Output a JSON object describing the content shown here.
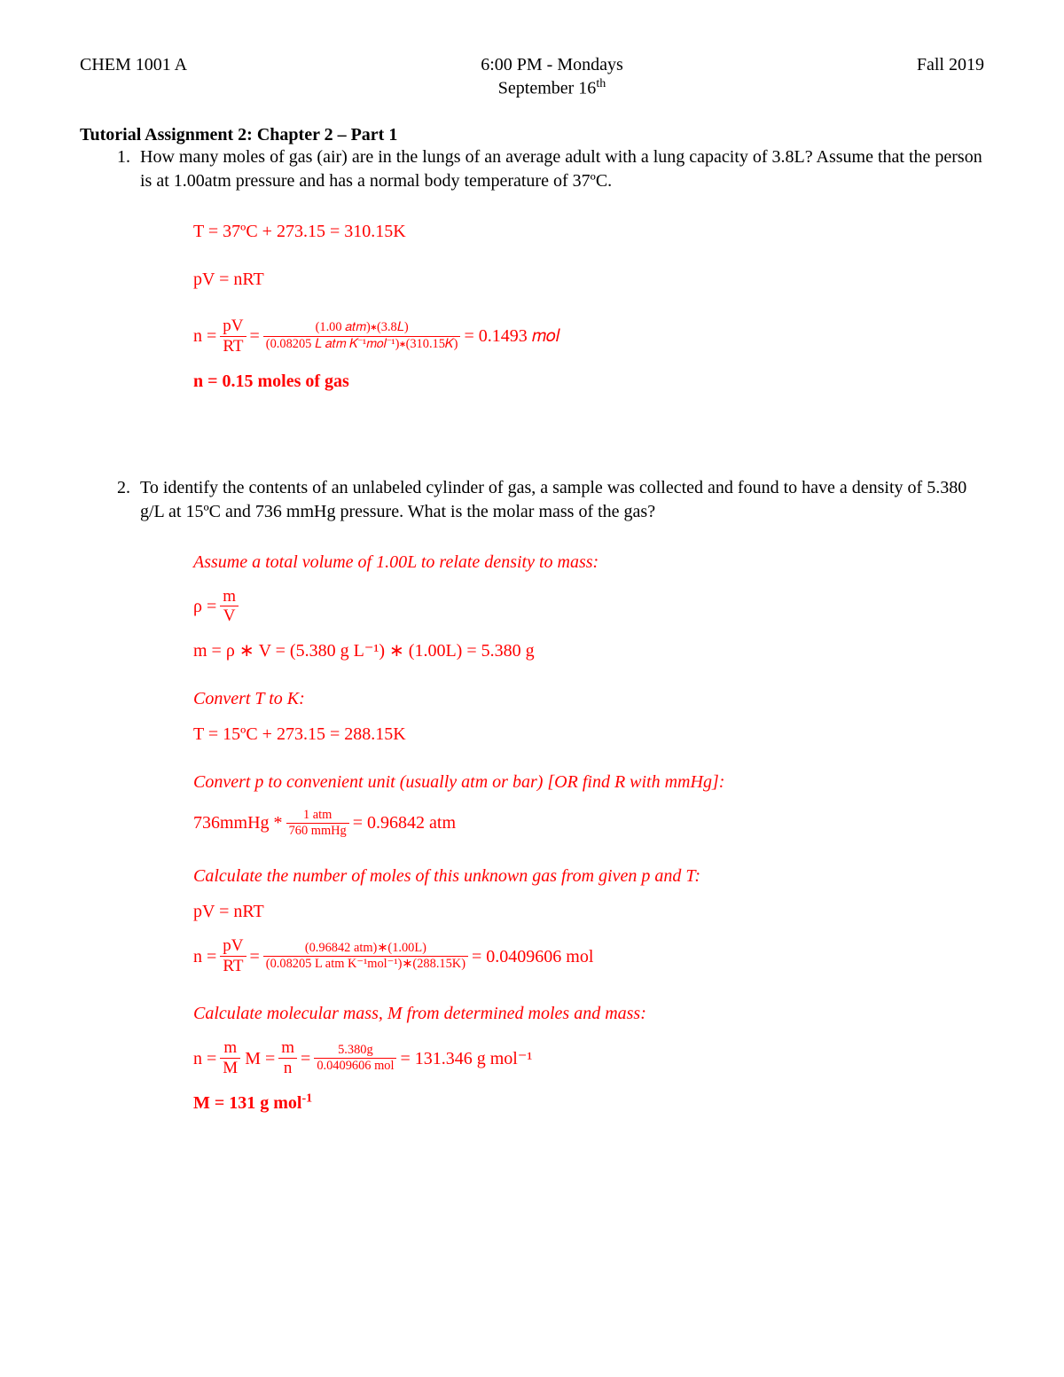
{
  "header": {
    "left": "CHEM 1001 A",
    "center_line1": "6:00 PM - Mondays",
    "center_line2_prefix": "September 16",
    "center_line2_sup": "th",
    "right": "Fall 2019"
  },
  "title": "Tutorial Assignment 2: Chapter 2 – Part 1",
  "colors": {
    "text": "#000000",
    "solution": "#ff0000",
    "background": "#ffffff"
  },
  "typography": {
    "family": "Times New Roman",
    "body_size_pt": 15,
    "title_weight": "bold"
  },
  "problem1": {
    "question": "How many moles of gas (air) are in the lungs of an average adult with a lung capacity of 3.8L? Assume that the person is at 1.00atm pressure and has a normal body temperature of 37ºC.",
    "sol_line1": "T = 37ºC + 273.15 = 310.15K",
    "sol_line2": "pV = nRT",
    "sol_eq_prefix": "n =",
    "frac1_num": "pV",
    "frac1_den": "RT",
    "eq_mid": "=",
    "frac2_num": "(1.00 𝑎𝑡𝑚)∗(3.8𝐿)",
    "frac2_den": "(0.08205 𝐿 𝑎𝑡𝑚 𝐾⁻¹𝑚𝑜𝑙⁻¹)∗(310.15𝐾)",
    "eq_result": "= 0.1493 𝑚𝑜𝑙",
    "final": "n = 0.15 moles of gas"
  },
  "problem2": {
    "question": "To identify the contents of an unlabeled cylinder of gas, a sample was collected and found to have a density of 5.380 g/L at 15ºC and 736 mmHg pressure. What is the molar mass of the gas?",
    "s1_head": "Assume a total volume of 1.00L to relate density to mass:",
    "s1_rho_prefix": "ρ =",
    "s1_rho_num": "m",
    "s1_rho_den": "V",
    "s1_mass": "m =  ρ ∗ V = (5.380 g L⁻¹) ∗ (1.00L) = 5.380 g",
    "s2_head": "Convert T to K:",
    "s2_temp": "T = 15ºC + 273.15 = 288.15K",
    "s3_head": "Convert p to convenient unit (usually atm or bar) [OR find R with mmHg]:",
    "s3_prefix": "736mmHg *",
    "s3_num": "1 atm",
    "s3_den": "760 mmHg",
    "s3_result": "= 0.96842 atm",
    "s4_head": "Calculate the number of moles of this unknown gas from given p and T:",
    "s4_pv": "pV = nRT",
    "s4_prefix": "n =",
    "s4_f1_num": "pV",
    "s4_f1_den": "RT",
    "s4_mid": "=",
    "s4_f2_num": "(0.96842 atm)∗(1.00L)",
    "s4_f2_den": "(0.08205 L atm K⁻¹mol⁻¹)∗(288.15K)",
    "s4_result": "=  0.0409606 mol",
    "s5_head": "Calculate molecular mass, M from determined moles and mass:",
    "s5_n_prefix": "n =",
    "s5_n_num": "m",
    "s5_n_den": "M",
    "s5_M_prefix": "M =",
    "s5_M1_num": "m",
    "s5_M1_den": "n",
    "s5_M_mid": "=",
    "s5_M2_num": "5.380g",
    "s5_M2_den": "0.0409606 mol",
    "s5_M_result": "= 131.346 g mol⁻¹",
    "final_prefix": "M = 131 g mol",
    "final_sup": "-1"
  }
}
